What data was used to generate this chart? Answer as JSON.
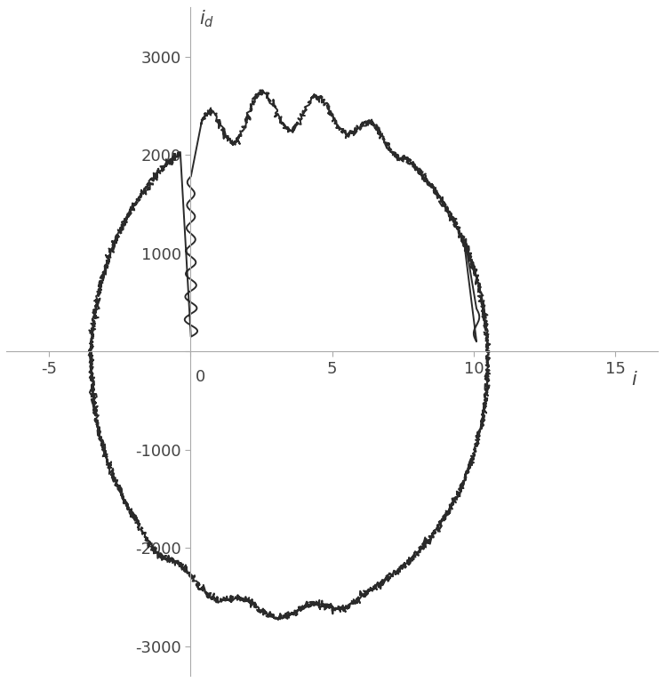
{
  "xlabel": "i",
  "ylabel": "i_d",
  "xlim": [
    -6.5,
    16.5
  ],
  "ylim": [
    -3300,
    3500
  ],
  "xticks": [
    -5,
    0,
    5,
    10,
    15
  ],
  "yticks": [
    -3000,
    -2000,
    -1000,
    0,
    1000,
    2000,
    3000
  ],
  "line_color": "#2a2a2a",
  "line_width": 1.4,
  "background_color": "#ffffff",
  "axis_color": "#aaaaaa",
  "tick_color": "#444444",
  "label_fontsize": 15,
  "tick_fontsize": 13
}
